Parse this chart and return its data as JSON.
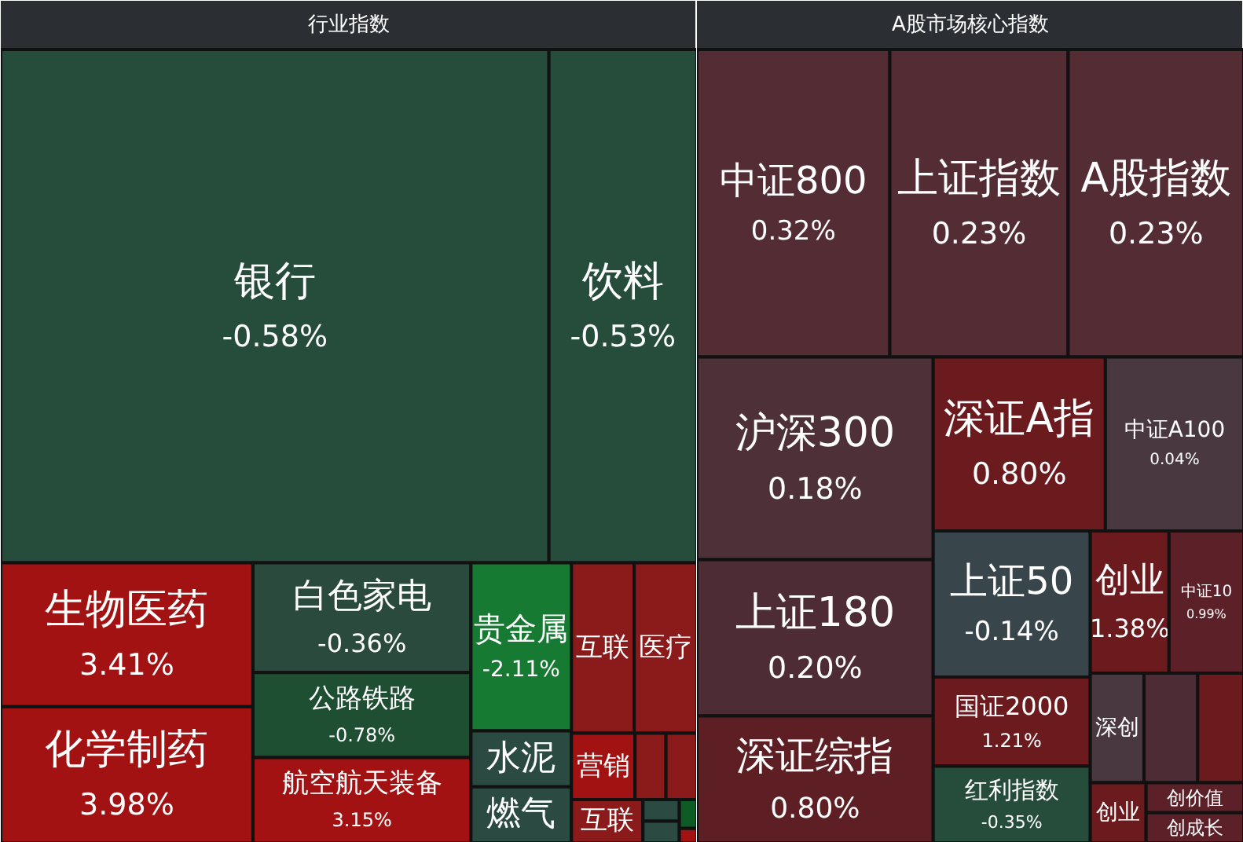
{
  "chart_data": [
    {
      "type": "other",
      "title": "行业指数",
      "categories": [
        "银行",
        "饮料",
        "生物医药",
        "化学制药",
        "白色家电",
        "公路铁路",
        "航空航天装备",
        "贵金属",
        "水泥",
        "燃气",
        "互联",
        "医疗",
        "营销",
        null,
        null,
        "互联",
        null,
        null,
        null,
        null
      ],
      "values": [
        -0.58,
        -0.53,
        3.41,
        3.98,
        -0.36,
        -0.78,
        3.15,
        -2.11,
        null,
        null,
        null,
        null,
        null,
        null,
        null,
        null,
        null,
        null,
        null,
        null
      ],
      "value_labels": [
        "-0.58%",
        "-0.53%",
        "3.41%",
        "3.98%",
        "-0.36%",
        "-0.78%",
        "3.15%",
        "-2.11%",
        null,
        null,
        null,
        null,
        null,
        null,
        null,
        null,
        null,
        null,
        null,
        null
      ],
      "colors": [
        "#264d3c",
        "#264d3c",
        "#a31212",
        "#a31212",
        "#2a4a3e",
        "#1e4f33",
        "#a31212",
        "#177a33",
        "#2b4a42",
        "#2b4a42",
        "#8b1a1a",
        "#8b1a1a",
        "#a31212",
        "#8b1a1a",
        "#8b1a1a",
        "#8b1a1a",
        "#2b4a42",
        "#2b4a42",
        "#0d5c26",
        "#a31212"
      ]
    },
    {
      "type": "other",
      "title": "A股市场核心指数",
      "categories": [
        "中证800",
        "上证指数",
        "A股指数",
        "沪深300",
        "深证A指",
        "中证A100",
        "上证50",
        "创业",
        "中证10",
        "上证180",
        "深创",
        null,
        null,
        "国证2000",
        "深证综指",
        "红利指数",
        "创业",
        "创价值",
        "创成长"
      ],
      "values": [
        0.32,
        0.23,
        0.23,
        0.18,
        0.8,
        0.04,
        -0.14,
        1.38,
        0.99,
        0.2,
        null,
        null,
        null,
        1.21,
        0.8,
        -0.35,
        null,
        null,
        null
      ],
      "value_labels": [
        "0.32%",
        "0.23%",
        "0.23%",
        "0.18%",
        "0.80%",
        "0.04%",
        "-0.14%",
        "1.38%",
        "0.99%",
        "0.20%",
        null,
        null,
        null,
        "1.21%",
        "0.80%",
        "-0.35%",
        null,
        null,
        null
      ],
      "colors": [
        "#542c34",
        "#542c34",
        "#542c34",
        "#4d3038",
        "#6b1a1e",
        "#4a3840",
        "#38454a",
        "#6b1a1e",
        "#5c2028",
        "#4d2c35",
        "#4a3840",
        "#4d2c35",
        "#6b1a1e",
        "#6b1a1e",
        "#5e1f24",
        "#264d3c",
        "#6b1a1e",
        "#5c2028",
        "#5c2028"
      ]
    }
  ]
}
